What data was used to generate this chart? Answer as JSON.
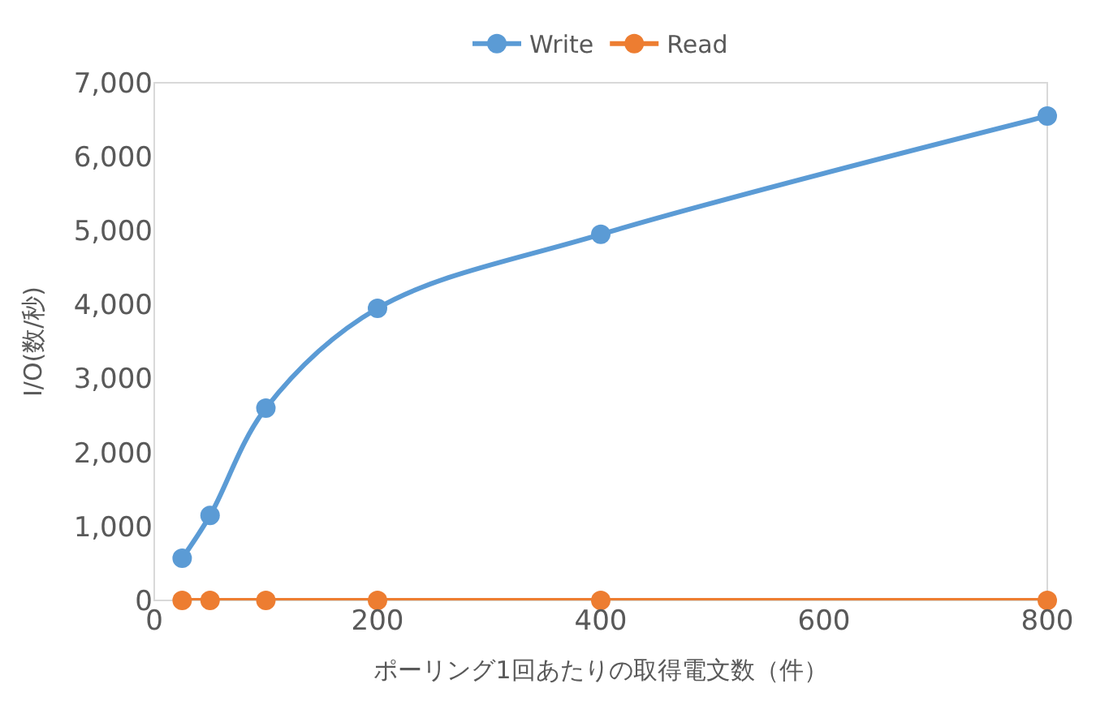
{
  "chart_data": {
    "type": "line",
    "xlabel": "ポーリング1回あたりの取得電文数（件）",
    "ylabel": "I/O(数/秒)",
    "x": [
      25,
      50,
      100,
      200,
      400,
      800
    ],
    "series": [
      {
        "name": "Write",
        "color": "#5b9bd5",
        "values": [
          570,
          1150,
          2600,
          3950,
          4950,
          6550
        ]
      },
      {
        "name": "Read",
        "color": "#ed7d31",
        "values": [
          0,
          0,
          0,
          0,
          0,
          0
        ]
      }
    ],
    "xlim": [
      0,
      800
    ],
    "xticks": [
      0,
      200,
      400,
      600,
      800
    ],
    "ylim": [
      0,
      7000
    ],
    "yticks": [
      0,
      {
        "value": 1000,
        "label": "1,000"
      },
      {
        "value": 2000,
        "label": "2,000"
      },
      {
        "value": 3000,
        "label": "3,000"
      },
      {
        "value": 4000,
        "label": "4,000"
      },
      {
        "value": 5000,
        "label": "5,000"
      },
      {
        "value": 6000,
        "label": "6,000"
      },
      {
        "value": 7000,
        "label": "7,000"
      }
    ],
    "grid": false,
    "legend": "top",
    "marker": "circle",
    "line_style": "solid"
  }
}
